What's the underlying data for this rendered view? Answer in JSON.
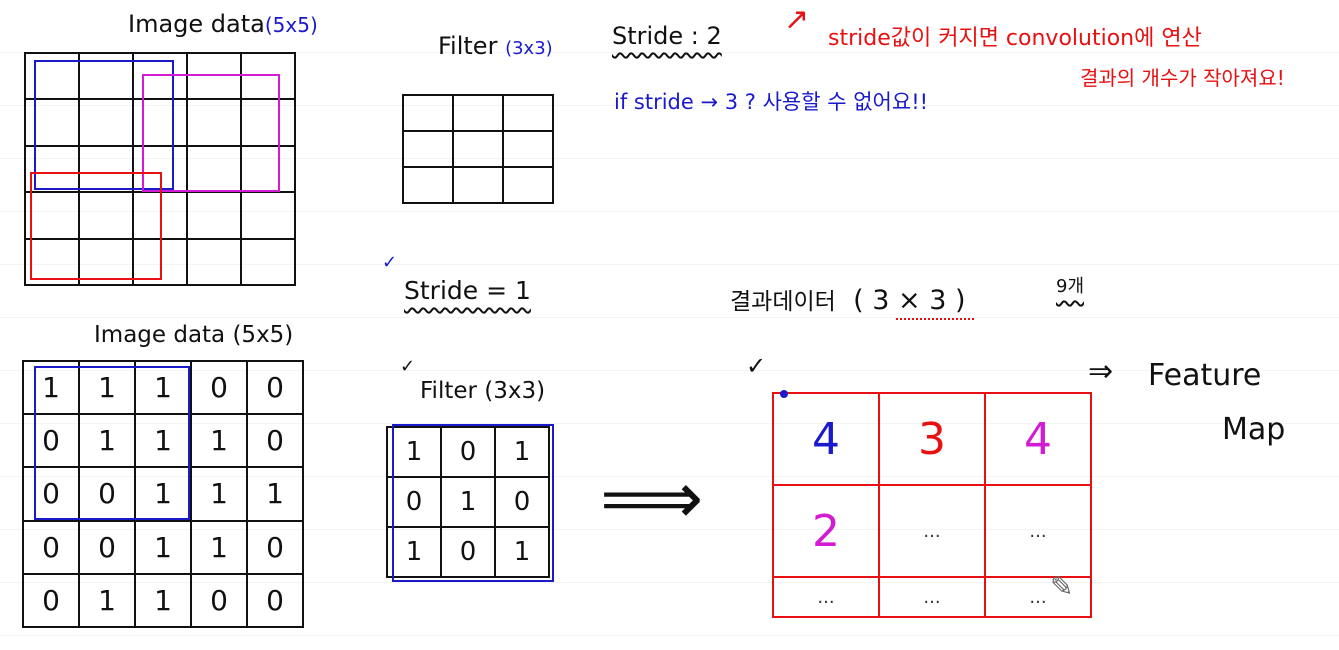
{
  "top_image": {
    "title": "Image data",
    "size": "(5x5)",
    "rows": 5,
    "cols": 5
  },
  "top_filter": {
    "title": "Filter",
    "size": "(3x3)",
    "rows": 3,
    "cols": 3
  },
  "stride2": {
    "label": "Stride : 2",
    "note_red_1": "stride값이 커지면  convolution에 연산",
    "note_red_2": "결과의 개수가 작아져요!",
    "note_blue": "if stride → 3 ?  사용할 수 없어요!!"
  },
  "stride1": {
    "label": "Stride = 1",
    "check": "✓"
  },
  "bottom_image": {
    "title": "Image data (5x5)",
    "cells": [
      [
        "1",
        "1",
        "1",
        "0",
        "0"
      ],
      [
        "0",
        "1",
        "1",
        "1",
        "0"
      ],
      [
        "0",
        "0",
        "1",
        "1",
        "1"
      ],
      [
        "0",
        "0",
        "1",
        "1",
        "0"
      ],
      [
        "0",
        "1",
        "1",
        "0",
        "0"
      ]
    ]
  },
  "bottom_filter": {
    "title": "Filter (3x3)",
    "check": "✓",
    "cells": [
      [
        "1",
        "0",
        "1"
      ],
      [
        "0",
        "1",
        "0"
      ],
      [
        "1",
        "0",
        "1"
      ]
    ]
  },
  "arrow": "⟹",
  "result": {
    "title_prefix": "결과데이터",
    "title_size": "( 3 × 3 )",
    "count_note": "9개",
    "check": "✓",
    "cells": [
      [
        {
          "v": "4",
          "color": "#1a1acc"
        },
        {
          "v": "3",
          "color": "#e81010"
        },
        {
          "v": "4",
          "color": "#d21bd2"
        }
      ],
      [
        {
          "v": "2",
          "color": "#d21bd2"
        },
        {
          "v": "...",
          "color": "#333333"
        },
        {
          "v": "...",
          "color": "#333333"
        }
      ],
      [
        {
          "v": "...",
          "color": "#333333"
        },
        {
          "v": "...",
          "color": "#333333"
        },
        {
          "v": "...",
          "color": "#333333"
        }
      ]
    ]
  },
  "feature_map": {
    "arrow": "⇒",
    "line1": "Feature",
    "line2": "Map"
  },
  "colors": {
    "blue": "#1a1acc",
    "red": "#e81010",
    "magenta": "#d21bd2",
    "ink": "#111111"
  }
}
